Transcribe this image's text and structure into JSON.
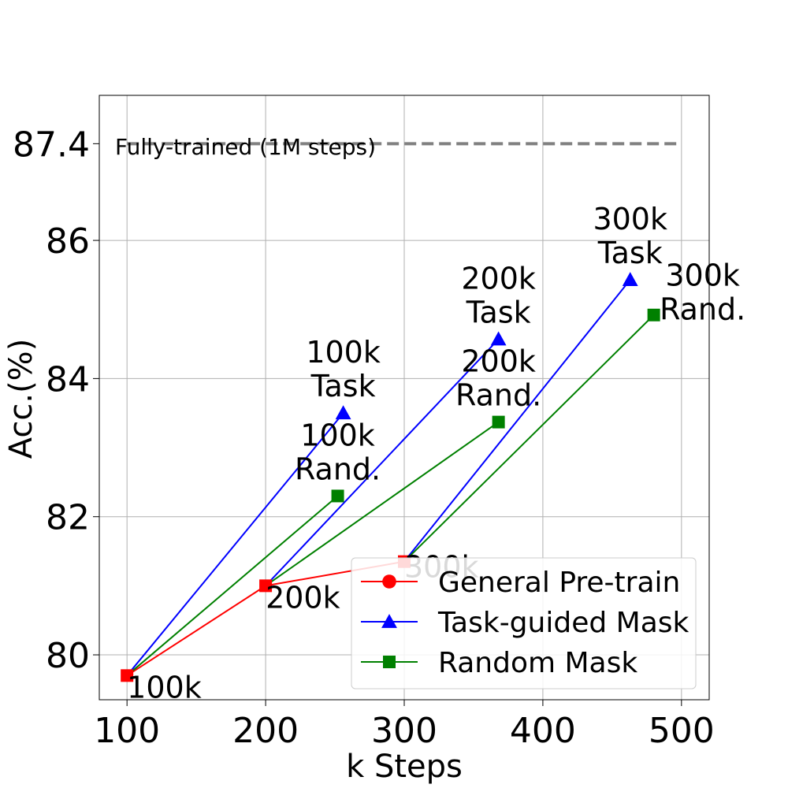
{
  "chart_data": {
    "type": "line",
    "xlabel": "k Steps",
    "ylabel": "Acc.(%)",
    "xlim": [
      80,
      520
    ],
    "ylim": [
      79.35,
      88.1
    ],
    "xticks": [
      100,
      200,
      300,
      400,
      500
    ],
    "yticks": [
      80,
      82,
      84,
      86,
      87.4
    ],
    "ytick_labels": [
      "80",
      "82",
      "84",
      "86",
      "87.4"
    ],
    "grid": true,
    "legend_position": "lower-right",
    "reference_line": {
      "y": 87.4,
      "x_range": [
        100,
        500
      ],
      "label": "Fully-trained (1M steps)",
      "color": "#808080",
      "style": "dashed"
    },
    "series": [
      {
        "name": "General Pre-train",
        "color": "#ff0000",
        "marker": "circle",
        "segments": [
          [
            [
              100,
              79.7
            ],
            [
              200,
              81.0
            ],
            [
              300,
              81.35
            ]
          ]
        ]
      },
      {
        "name": "Task-guided Mask",
        "color": "#0000ff",
        "marker": "triangle",
        "segments": [
          [
            [
              100,
              79.7
            ],
            [
              256,
              83.5
            ]
          ],
          [
            [
              200,
              81.0
            ],
            [
              368,
              84.57
            ]
          ],
          [
            [
              300,
              81.35
            ],
            [
              463,
              85.43
            ]
          ]
        ]
      },
      {
        "name": "Random Mask",
        "color": "#008000",
        "marker": "square",
        "segments": [
          [
            [
              100,
              79.7
            ],
            [
              252,
              82.3
            ]
          ],
          [
            [
              200,
              81.0
            ],
            [
              368,
              83.37
            ]
          ],
          [
            [
              300,
              81.35
            ],
            [
              480,
              84.92
            ]
          ]
        ]
      }
    ],
    "general_points": [
      {
        "x": 100,
        "y": 79.7,
        "color": "#ff0000"
      },
      {
        "x": 200,
        "y": 81.0,
        "color": "#ff0000"
      },
      {
        "x": 300,
        "y": 81.35,
        "color": "#ff0000"
      }
    ],
    "annotations": [
      {
        "text": "100k",
        "x": 100,
        "y": 79.7
      },
      {
        "text": "200k",
        "x": 200,
        "y": 81.0
      },
      {
        "text": "300k",
        "x": 300,
        "y": 81.35
      },
      {
        "text": "100k\nTask",
        "x": 256,
        "y": 83.5
      },
      {
        "text": "200k\nTask",
        "x": 368,
        "y": 84.57
      },
      {
        "text": "300k\nTask",
        "x": 463,
        "y": 85.43
      },
      {
        "text": "100k\nRand.",
        "x": 252,
        "y": 82.3
      },
      {
        "text": "200k\nRand.",
        "x": 368,
        "y": 83.37
      },
      {
        "text": "300k\nRand.",
        "x": 480,
        "y": 84.92
      }
    ]
  }
}
